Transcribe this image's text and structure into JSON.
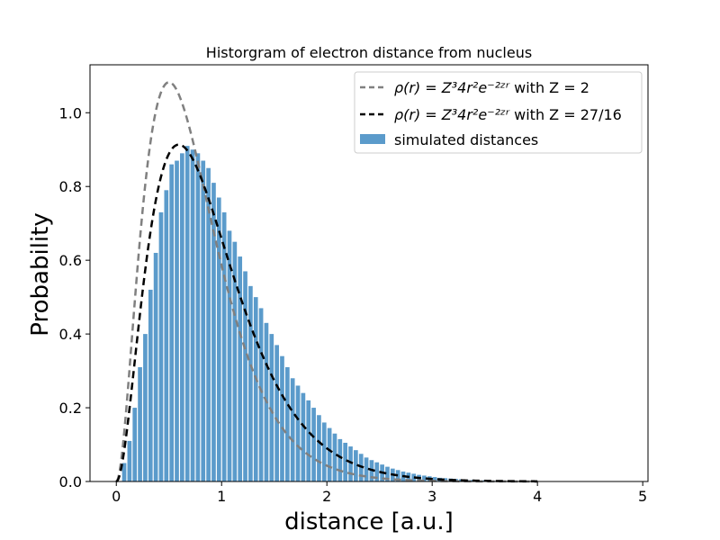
{
  "chart_data": {
    "type": "bar",
    "title": "Historgram of electron distance from nucleus",
    "xlabel": "distance [a.u.]",
    "ylabel": "Probability",
    "xlim": [
      -0.25,
      5.05
    ],
    "ylim": [
      0,
      1.13
    ],
    "xticks": [
      0,
      1,
      2,
      3,
      4,
      5
    ],
    "yticks": [
      0.0,
      0.2,
      0.4,
      0.6,
      0.8,
      1.0
    ],
    "xtick_labels": [
      "0",
      "1",
      "2",
      "3",
      "4",
      "5"
    ],
    "ytick_labels": [
      "0.0",
      "0.2",
      "0.4",
      "0.6",
      "0.8",
      "1.0"
    ],
    "grid": false,
    "legend_position": "top-right",
    "histogram": {
      "name": "simulated distances",
      "color": "#5b9bcb",
      "bin_start": 0.0,
      "bin_width": 0.05,
      "values": [
        0.0,
        0.05,
        0.11,
        0.2,
        0.31,
        0.4,
        0.52,
        0.62,
        0.73,
        0.79,
        0.86,
        0.87,
        0.89,
        0.91,
        0.9,
        0.89,
        0.87,
        0.85,
        0.81,
        0.77,
        0.73,
        0.68,
        0.65,
        0.61,
        0.57,
        0.53,
        0.5,
        0.47,
        0.43,
        0.4,
        0.37,
        0.34,
        0.31,
        0.28,
        0.26,
        0.24,
        0.22,
        0.2,
        0.18,
        0.16,
        0.145,
        0.13,
        0.115,
        0.105,
        0.095,
        0.085,
        0.075,
        0.065,
        0.058,
        0.052,
        0.046,
        0.04,
        0.035,
        0.031,
        0.027,
        0.024,
        0.021,
        0.018,
        0.016,
        0.014,
        0.012,
        0.01,
        0.009,
        0.008,
        0.007,
        0.006,
        0.005,
        0.004,
        0.0035,
        0.003,
        0.0025,
        0.002,
        0.0018,
        0.0015,
        0.0012,
        0.001,
        0.0008,
        0.0006,
        0.0005,
        0.0004
      ]
    },
    "curves": [
      {
        "name": "ρ(r) = Z³4r²e^(−2Zr) with Z = 2",
        "legend_math": "ρ(r) = Z³4r²e⁻²ᶻʳ",
        "legend_suffix": " with Z = 2",
        "Z": 2,
        "x_range": [
          0,
          4
        ],
        "color": "#808080",
        "style": "dashed"
      },
      {
        "name": "ρ(r) = Z³4r²e^(−2Zr) with Z = 27/16",
        "legend_math": "ρ(r) = Z³4r²e⁻²ᶻʳ",
        "legend_suffix": " with Z = 27/16",
        "Z": 1.6875,
        "x_range": [
          0,
          4
        ],
        "color": "#000000",
        "style": "dashed"
      }
    ]
  }
}
